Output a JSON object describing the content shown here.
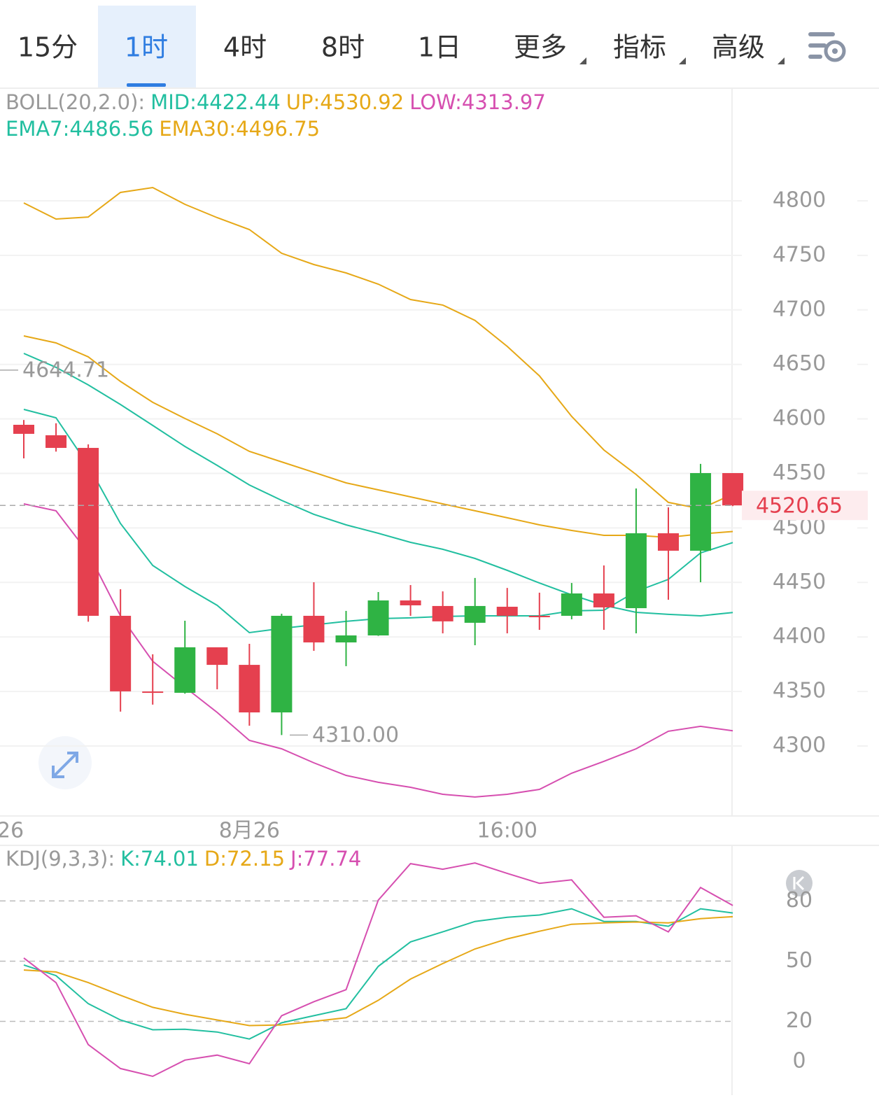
{
  "tabs": [
    {
      "label": "15分"
    },
    {
      "label": "1时",
      "selected": true
    },
    {
      "label": "4时"
    },
    {
      "label": "8时"
    },
    {
      "label": "1日"
    },
    {
      "label": "更多",
      "menu": true
    },
    {
      "label": "指标",
      "menu": true
    },
    {
      "label": "高级",
      "menu": true
    }
  ],
  "chart_data": [
    {
      "type": "candlestick",
      "up_color": "#2fb344",
      "down_color": "#e5404f",
      "categories": [
        null,
        null,
        null,
        null,
        null,
        null,
        null,
        "8月26",
        null,
        null,
        null,
        null,
        null,
        null,
        null,
        "16:00",
        null,
        null,
        null,
        null,
        null,
        null,
        null
      ],
      "edge_label": "26",
      "open": [
        4594.6,
        4585,
        4573.4,
        4419.4,
        4350,
        4348.8,
        4390.5,
        4374.4,
        4330.8,
        4419.4,
        4395,
        4401.4,
        4433.5,
        4428.4,
        4413,
        4427.7,
        4419.4,
        4419.4,
        4439.9,
        4426.4,
        4495.1,
        4479.1,
        4550.3
      ],
      "high": [
        4599,
        4596,
        4576.6,
        4443.8,
        4384.1,
        4414.9,
        4390.5,
        4393.7,
        4421.3,
        4450.2,
        4423.9,
        4441.2,
        4447.6,
        4441.8,
        4454.1,
        4445,
        4440.6,
        4449.5,
        4465.6,
        4536.2,
        4518.9,
        4558.7,
        4550.3
      ],
      "low": [
        4563.8,
        4570,
        4414,
        4331.5,
        4337.9,
        4348,
        4352,
        4318.6,
        4310,
        4387.3,
        4373.2,
        4401,
        4419.4,
        4403.3,
        4392.4,
        4403.3,
        4406.5,
        4416.2,
        4406.5,
        4403.3,
        4434.1,
        4450.2,
        4520
      ],
      "close": [
        4586.3,
        4573.4,
        4419.4,
        4350.1,
        4349.5,
        4390.5,
        4374.4,
        4330.8,
        4419.4,
        4395,
        4401.4,
        4433.5,
        4429,
        4414.3,
        4428.4,
        4419.4,
        4418.1,
        4439.9,
        4427.1,
        4495.1,
        4479.1,
        4550.3,
        4520.65
      ],
      "indicators": [
        {
          "title": "BOLL(20,2.0):",
          "series": [
            {
              "name": "MID:4422.44",
              "color": "#22bfa0",
              "values": [
                4660.1,
                4647.3,
                4631.2,
                4613.2,
                4594,
                4574.7,
                4557.4,
                4539.4,
                4525.3,
                4512.5,
                4502.8,
                4495.1,
                4486.8,
                4480.4,
                4472,
                4461.1,
                4449.5,
                4438.6,
                4429,
                4422.6,
                4420.7,
                4419.4,
                4422.44
              ]
            },
            {
              "name": "UP:4530.92",
              "color": "#e6a817",
              "values": [
                4798.1,
                4783.3,
                4785.2,
                4807.7,
                4812.2,
                4796.8,
                4784.6,
                4773.7,
                4751.9,
                4741.6,
                4733.9,
                4723.6,
                4709.5,
                4704.4,
                4690.3,
                4666.5,
                4639.5,
                4602.3,
                4571.5,
                4549,
                4523.4,
                4517.6,
                4530.92
              ]
            },
            {
              "name": "LOW:4313.97",
              "color": "#d64fb0",
              "values": [
                4522.1,
                4515.7,
                4477.2,
                4419.4,
                4377.7,
                4353.9,
                4330.8,
                4305.1,
                4297.4,
                4284.6,
                4273,
                4266.7,
                4262.1,
                4255.7,
                4253.2,
                4255.7,
                4260.2,
                4275,
                4285.9,
                4297.4,
                4313.5,
                4318,
                4313.97
              ]
            }
          ]
        },
        {
          "series": [
            {
              "name": "EMA7:4486.56",
              "color": "#22bfa0",
              "values": [
                4608.7,
                4601,
                4557.4,
                4504.1,
                4465.6,
                4446.3,
                4429,
                4404,
                4407.8,
                4411.1,
                4414.3,
                4416.8,
                4417.5,
                4418.8,
                4419.4,
                4419.4,
                4419.4,
                4423.9,
                4424.5,
                4441.8,
                4452.8,
                4477.1,
                4486.56
              ]
            },
            {
              "name": "EMA30:4496.75",
              "color": "#e6a817",
              "values": [
                4676.1,
                4669.7,
                4656.9,
                4634.4,
                4615.2,
                4600.4,
                4586.3,
                4570.2,
                4560.6,
                4551,
                4541.3,
                4534.9,
                4528.5,
                4522.1,
                4515.7,
                4509.3,
                4502.8,
                4497.7,
                4493.2,
                4493.2,
                4491.3,
                4494.5,
                4496.75
              ]
            }
          ]
        }
      ],
      "last_price": 4520.65,
      "last_price_color": "#e5404f",
      "annotations": [
        {
          "value": 4644.71,
          "label": "4644.71"
        },
        {
          "value": 4310,
          "label": "4310.00"
        }
      ],
      "ylim": [
        4235.8,
        4902.7
      ],
      "yticks": [
        4300,
        4350,
        4400,
        4450,
        4500,
        4550,
        4600,
        4650,
        4700,
        4750,
        4800
      ],
      "grid": true
    },
    {
      "type": "line",
      "title": "KDJ(9,3,3):",
      "series": [
        {
          "name": "K:74.01",
          "color": "#22bfa0",
          "values": [
            48.1,
            42.8,
            28.8,
            20.7,
            15.8,
            16.1,
            14.7,
            11.2,
            19.3,
            22.8,
            26.3,
            47.4,
            59.6,
            64.6,
            69.8,
            71.9,
            73,
            76.1,
            69.8,
            69.8,
            67.4,
            76.1,
            74.01
          ]
        },
        {
          "name": "D:72.15",
          "color": "#e6a817",
          "values": [
            45.6,
            44.6,
            39.3,
            33,
            27,
            23.5,
            20.7,
            17.9,
            18.2,
            20,
            21.8,
            30.5,
            41.1,
            48.8,
            56.1,
            61.1,
            64.9,
            68.4,
            69.1,
            69.5,
            69.1,
            71.2,
            72.15
          ]
        },
        {
          "name": "J:77.74",
          "color": "#d64fb0",
          "values": [
            51.6,
            39.3,
            8.4,
            -3.5,
            -7.4,
            0.7,
            3.2,
            -1.1,
            22.8,
            29.8,
            35.8,
            80.4,
            98.6,
            95.8,
            98.9,
            93.7,
            88.8,
            90.5,
            71.9,
            72.6,
            64.6,
            86.7,
            77.74
          ]
        }
      ],
      "ylim": [
        -16.8,
        107.7
      ],
      "yticks": [
        0,
        20,
        50,
        80
      ],
      "grid": true
    }
  ]
}
